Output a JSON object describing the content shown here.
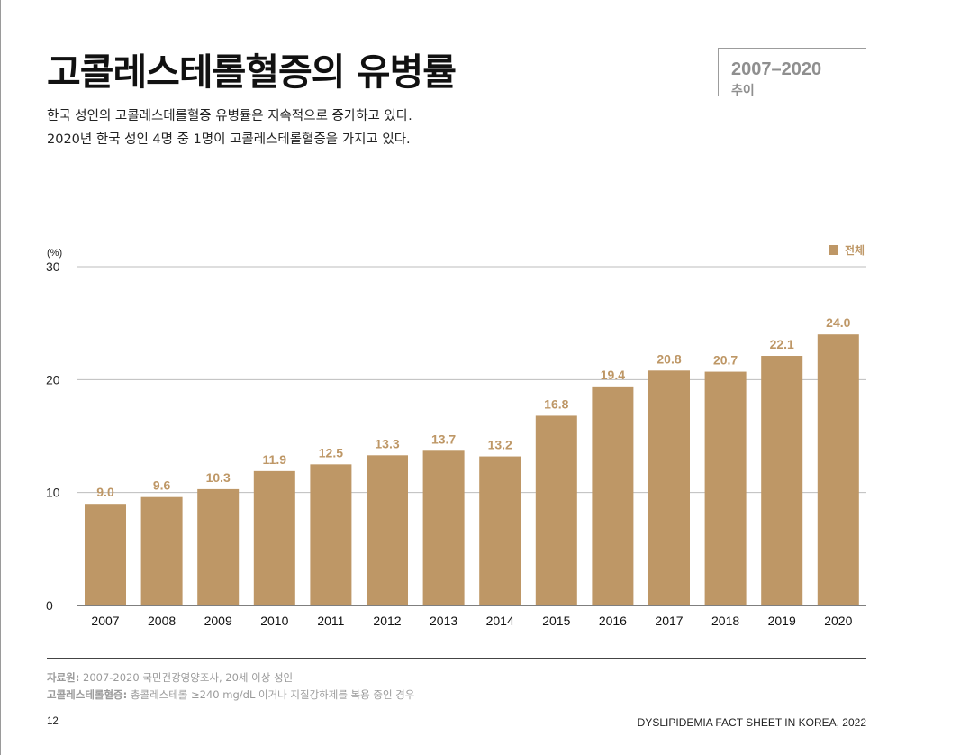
{
  "header": {
    "title": "고콜레스테롤혈증의 유병률",
    "subtitle_line1": "한국 성인의 고콜레스테롤혈증 유병률은 지속적으로 증가하고 있다.",
    "subtitle_line2": "2020년 한국 성인 4명 중 1명이 고콜레스테롤혈증을 가지고 있다.",
    "period_years": "2007–2020",
    "period_label": "추이"
  },
  "chart_data": {
    "type": "bar",
    "ylabel": "(%)",
    "ylim": [
      0,
      30
    ],
    "yticks": [
      0,
      10,
      20,
      30
    ],
    "grid": true,
    "legend_position": "top-right",
    "categories": [
      "2007",
      "2008",
      "2009",
      "2010",
      "2011",
      "2012",
      "2013",
      "2014",
      "2015",
      "2016",
      "2017",
      "2018",
      "2019",
      "2020"
    ],
    "series": [
      {
        "name": "전체",
        "color": "#be9766",
        "values": [
          9.0,
          9.6,
          10.3,
          11.9,
          12.5,
          13.3,
          13.7,
          13.2,
          16.8,
          19.4,
          20.8,
          20.7,
          22.1,
          24.0
        ],
        "labels": [
          "9.0",
          "9.6",
          "10.3",
          "11.9",
          "12.5",
          "13.3",
          "13.7",
          "13.2",
          "16.8",
          "19.4",
          "20.8",
          "20.7",
          "22.1",
          "24.0"
        ]
      }
    ]
  },
  "footer": {
    "source_label": "자료원:",
    "source_text": " 2007-2020 국민건강영양조사, 20세 이상 성인",
    "definition_label": "고콜레스테롤혈증:",
    "definition_text": " 총콜레스테롤 ≥240 mg/dL 이거나 지질강하제를 복용 중인 경우",
    "page_number": "12",
    "document_title": "DYSLIPIDEMIA FACT SHEET IN KOREA, 2022"
  },
  "colors": {
    "bar": "#be9766",
    "label": "#be9766",
    "grid": "#bdbdbd",
    "axis": "#333333"
  }
}
